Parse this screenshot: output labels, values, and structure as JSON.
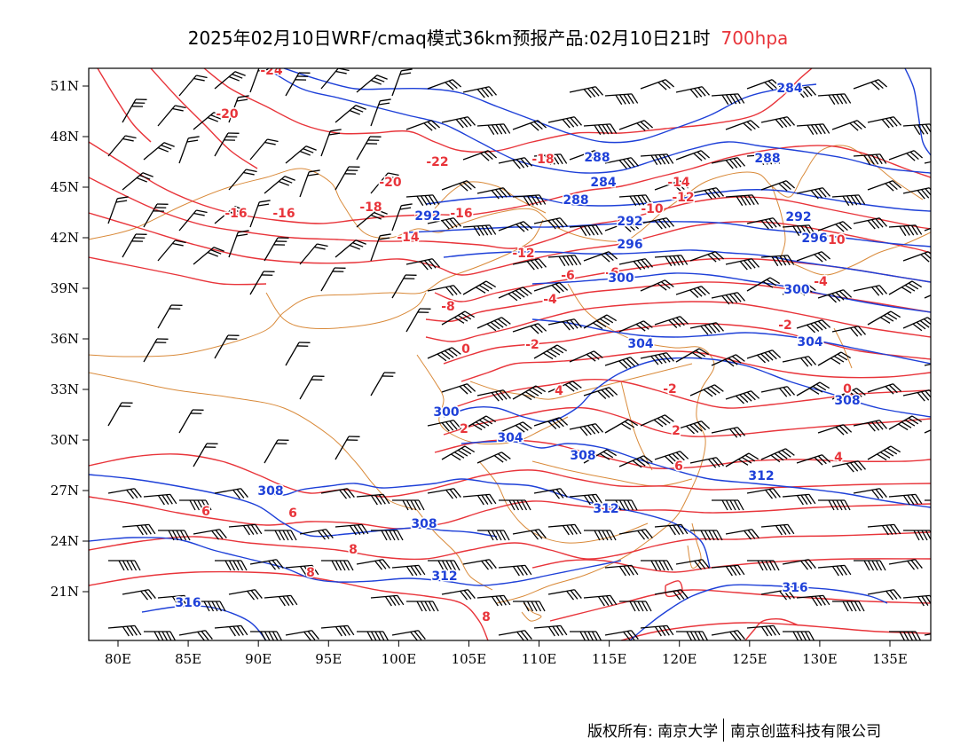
{
  "title": {
    "text": "2025年02月10日WRF/cmaq模式36km预报产品:02月10日21时",
    "level": "700hpa",
    "level_color": "#e8343a"
  },
  "colors": {
    "temperature": "#e8343a",
    "geopotential": "#1e40d8",
    "wind_barb": "#000000",
    "boundary": "#d98a3a"
  },
  "map": {
    "lon_range": [
      78,
      138
    ],
    "lat_range": [
      18,
      52
    ],
    "lon_ticks": [
      "80E",
      "85E",
      "90E",
      "95E",
      "100E",
      "105E",
      "110E",
      "115E",
      "120E",
      "125E",
      "130E",
      "135E"
    ],
    "lat_ticks": [
      "51N",
      "48N",
      "45N",
      "42N",
      "39N",
      "36N",
      "33N",
      "30N",
      "27N",
      "24N",
      "21N"
    ],
    "temperature_labels": [
      "-24",
      "-22",
      "-20",
      "-20",
      "-18",
      "-18",
      "-16",
      "-16",
      "-16",
      "-14",
      "-14",
      "-12",
      "-12",
      "-10",
      "-10",
      "-8",
      "-6",
      "-6",
      "-4",
      "-4",
      "-2",
      "-2",
      "-2",
      "0",
      "0",
      "2",
      "2",
      "4",
      "4",
      "6",
      "6",
      "6",
      "8",
      "8",
      "8"
    ],
    "height_labels": [
      "284",
      "284",
      "288",
      "288",
      "288",
      "292",
      "292",
      "292",
      "296",
      "296",
      "300",
      "300",
      "300",
      "304",
      "304",
      "304",
      "308",
      "308",
      "308",
      "308",
      "312",
      "312",
      "312",
      "316",
      "316"
    ]
  },
  "footer": {
    "left": "版权所有: 南京大学",
    "right": "南京创蓝科技有限公司"
  }
}
